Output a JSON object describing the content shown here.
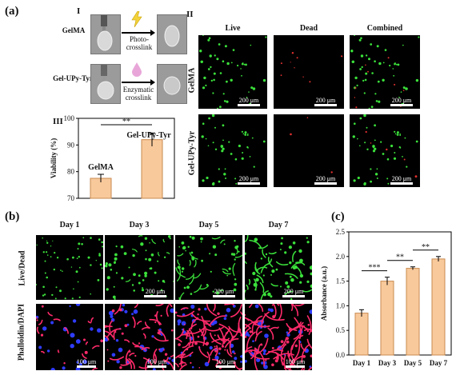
{
  "panel_a": {
    "label": "(a)",
    "section_I": "I",
    "section_II": "II",
    "section_III": "III",
    "row1_label": "GelMA",
    "row2_label": "Gel-UPy-Tyr",
    "step1_text": "Photo-\ncrosslink",
    "step2_text": "Enzymatic\ncrosslink",
    "col_headers": [
      "Live",
      "Dead",
      "Combined"
    ],
    "row_labels": [
      "GelMA",
      "Gel-UPy-Tyr"
    ],
    "scale_text": "200 μm"
  },
  "panel_b": {
    "label": "(b)",
    "day_headers": [
      "Day 1",
      "Day 3",
      "Day 5",
      "Day 7"
    ],
    "row_labels": [
      "Live/Dead",
      "Phalloidin/DAPI"
    ],
    "scale_top": "200 μm",
    "scale_bottom": "100 μm"
  },
  "panel_c": {
    "label": "(c)"
  },
  "chart_data": [
    {
      "type": "bar",
      "categories": [
        "GelMA",
        "Gel-UPy-Tyr"
      ],
      "values": [
        77.5,
        92
      ],
      "errors": [
        1.5,
        2.5
      ],
      "ylabel": "Viability (%)",
      "ylim": [
        70,
        100
      ],
      "yticks": [
        70,
        80,
        90,
        100
      ],
      "significance": "**",
      "bar_color": "#f8c99b",
      "bar_edge": "#c98a4f"
    },
    {
      "type": "bar",
      "categories": [
        "Day 1",
        "Day 3",
        "Day 5",
        "Day 7"
      ],
      "values": [
        0.85,
        1.5,
        1.76,
        1.95
      ],
      "errors": [
        0.07,
        0.08,
        0.03,
        0.05
      ],
      "ylabel": "Absorbance (a.u.)",
      "ylim": [
        0,
        2.5
      ],
      "yticks": [
        0.0,
        0.5,
        1.0,
        1.5,
        2.0,
        2.5
      ],
      "significance": [
        {
          "from": 0,
          "to": 1,
          "label": "***"
        },
        {
          "from": 1,
          "to": 2,
          "label": "**"
        },
        {
          "from": 2,
          "to": 3,
          "label": "**"
        }
      ],
      "bar_color": "#f8c99b",
      "bar_edge": "#c98a4f"
    }
  ]
}
